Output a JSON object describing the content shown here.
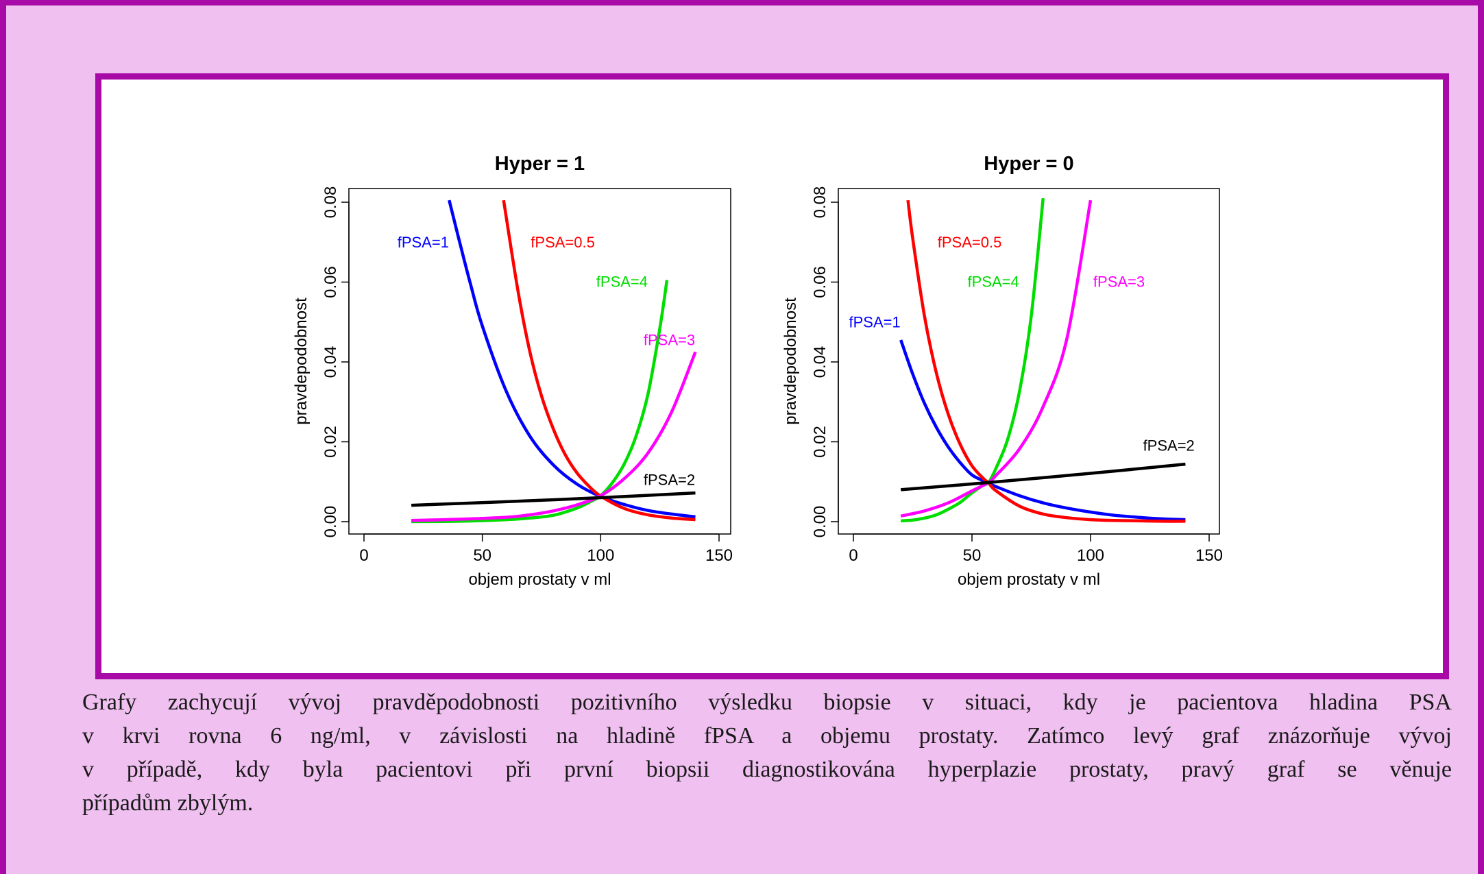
{
  "colors": {
    "background": "#f0c0f0",
    "border": "#a70aa7",
    "blue": "#0000ff",
    "red": "#ff0000",
    "green": "#00dd00",
    "magenta": "#ff00ff",
    "black": "#000000"
  },
  "caption": {
    "lines": [
      "Grafy zachycují vývoj pravděpodobnosti pozitivního výsledku biopsie v situaci, kdy je pacientova hladina PSA",
      "v krvi rovna 6 ng/ml, v závislosti na hladině fPSA a objemu prostaty. Zatímco levý graf znázorňuje vývoj",
      "v případě, kdy byla pacientovi při první biopsii diagnostikována hyperplazie prostaty, pravý graf se věnuje",
      "případům zbylým."
    ]
  },
  "chart_data": [
    {
      "type": "line",
      "title": "Hyper = 1",
      "xlabel": "objem prostaty v ml",
      "ylabel": "pravdepodobnost",
      "xlim": [
        0,
        150
      ],
      "ylim": [
        0,
        0.08
      ],
      "xticks": [
        "0",
        "50",
        "100",
        "150"
      ],
      "yticks": [
        "0.00",
        "0.02",
        "0.04",
        "0.06",
        "0.08"
      ],
      "grid": false,
      "series": [
        {
          "name": "fPSA=1",
          "color": "#0000ff",
          "x": [
            36,
            40,
            45,
            50,
            60,
            70,
            80,
            90,
            100,
            110,
            120,
            130,
            140
          ],
          "y": [
            0.0805,
            0.071,
            0.0595,
            0.049,
            0.0328,
            0.0215,
            0.0142,
            0.0094,
            0.0063,
            0.0043,
            0.0028,
            0.0019,
            0.0012
          ]
        },
        {
          "name": "fPSA=0.5",
          "color": "#ff0000",
          "x": [
            59,
            65,
            70,
            75,
            80,
            85,
            90,
            95,
            100,
            110,
            120,
            130,
            140
          ],
          "y": [
            0.0805,
            0.058,
            0.0428,
            0.0315,
            0.0232,
            0.0168,
            0.0122,
            0.0089,
            0.0064,
            0.0033,
            0.0017,
            0.0009,
            0.0005
          ]
        },
        {
          "name": "fPSA=4",
          "color": "#00dd00",
          "x": [
            20,
            40,
            60,
            70,
            80,
            90,
            95,
            100,
            105,
            110,
            115,
            120,
            125,
            128
          ],
          "y": [
            0.0,
            0.0001,
            0.0005,
            0.0009,
            0.0016,
            0.0034,
            0.0048,
            0.0065,
            0.0098,
            0.0145,
            0.0215,
            0.032,
            0.0485,
            0.0605
          ]
        },
        {
          "name": "fPSA=3",
          "color": "#ff00ff",
          "x": [
            20,
            40,
            60,
            70,
            80,
            90,
            100,
            110,
            120,
            130,
            140
          ],
          "y": [
            0.0003,
            0.0006,
            0.0011,
            0.0017,
            0.0027,
            0.0042,
            0.0065,
            0.0108,
            0.0172,
            0.0275,
            0.0425
          ]
        },
        {
          "name": "fPSA=2",
          "color": "#000000",
          "x": [
            20,
            60,
            100,
            140
          ],
          "y": [
            0.0041,
            0.005,
            0.006,
            0.0072
          ]
        }
      ],
      "labels": [
        {
          "text": "fPSA=1",
          "color": "#0000ff",
          "x": 25,
          "y": 0.0697
        },
        {
          "text": "fPSA=0.5",
          "color": "#ff0000",
          "x": 84,
          "y": 0.0697
        },
        {
          "text": "fPSA=4",
          "color": "#00dd00",
          "x": 109,
          "y": 0.0598
        },
        {
          "text": "fPSA=3",
          "color": "#ff00ff",
          "x": 129,
          "y": 0.0452
        },
        {
          "text": "fPSA=2",
          "color": "#000000",
          "x": 129,
          "y": 0.0102
        }
      ]
    },
    {
      "type": "line",
      "title": "Hyper = 0",
      "xlabel": "objem prostaty v ml",
      "ylabel": "pravdepodobnost",
      "xlim": [
        0,
        150
      ],
      "ylim": [
        0,
        0.08
      ],
      "xticks": [
        "0",
        "50",
        "100",
        "150"
      ],
      "yticks": [
        "0.00",
        "0.02",
        "0.04",
        "0.06",
        "0.08"
      ],
      "grid": false,
      "series": [
        {
          "name": "fPSA=1",
          "color": "#0000ff",
          "x": [
            20,
            25,
            30,
            35,
            40,
            45,
            50,
            55,
            57,
            60,
            70,
            80,
            90,
            100,
            110,
            120,
            130,
            140
          ],
          "y": [
            0.0455,
            0.037,
            0.0296,
            0.0236,
            0.0187,
            0.0148,
            0.0117,
            0.0102,
            0.0096,
            0.0088,
            0.0065,
            0.0047,
            0.0034,
            0.0024,
            0.0016,
            0.0011,
            0.0007,
            0.0005
          ]
        },
        {
          "name": "fPSA=0.5",
          "color": "#ff0000",
          "x": [
            23,
            25,
            30,
            35,
            40,
            45,
            50,
            55,
            57,
            60,
            70,
            80,
            90,
            100,
            110,
            120,
            130,
            140
          ],
          "y": [
            0.0805,
            0.071,
            0.0514,
            0.0372,
            0.0269,
            0.0194,
            0.014,
            0.0107,
            0.0097,
            0.0078,
            0.0039,
            0.0019,
            0.001,
            0.0005,
            0.0003,
            0.0002,
            0.0001,
            0.0001
          ]
        },
        {
          "name": "fPSA=4",
          "color": "#00dd00",
          "x": [
            20,
            25,
            30,
            35,
            40,
            45,
            50,
            55,
            57,
            60,
            65,
            70,
            75,
            80
          ],
          "y": [
            0.0002,
            0.0004,
            0.0009,
            0.0017,
            0.0031,
            0.0048,
            0.0072,
            0.0092,
            0.0098,
            0.0132,
            0.0205,
            0.0325,
            0.0515,
            0.081
          ]
        },
        {
          "name": "fPSA=3",
          "color": "#ff00ff",
          "x": [
            20,
            30,
            40,
            50,
            57,
            60,
            70,
            80,
            90,
            100
          ],
          "y": [
            0.0014,
            0.0027,
            0.0047,
            0.0077,
            0.0098,
            0.0115,
            0.0182,
            0.0288,
            0.0458,
            0.0805
          ]
        },
        {
          "name": "fPSA=2",
          "color": "#000000",
          "x": [
            20,
            57,
            100,
            140
          ],
          "y": [
            0.008,
            0.0098,
            0.0121,
            0.0144
          ]
        }
      ],
      "labels": [
        {
          "text": "fPSA=0.5",
          "color": "#ff0000",
          "x": 49,
          "y": 0.0697
        },
        {
          "text": "fPSA=4",
          "color": "#00dd00",
          "x": 59,
          "y": 0.0598
        },
        {
          "text": "fPSA=3",
          "color": "#ff00ff",
          "x": 112,
          "y": 0.0598
        },
        {
          "text": "fPSA=1",
          "color": "#0000ff",
          "x": 9,
          "y": 0.0497
        },
        {
          "text": "fPSA=2",
          "color": "#000000",
          "x": 133,
          "y": 0.0188
        }
      ]
    }
  ]
}
